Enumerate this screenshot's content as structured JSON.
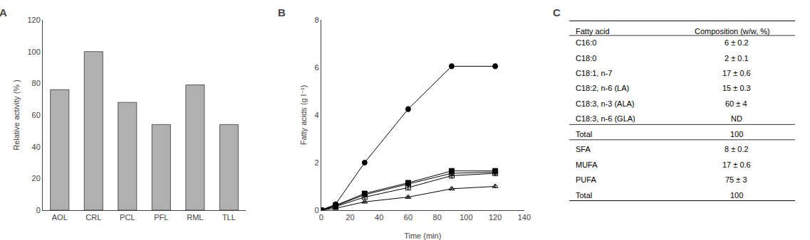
{
  "chart_data": [
    {
      "type": "bar",
      "title": "A",
      "categories": [
        "AOL",
        "CRL",
        "PCL",
        "PFL",
        "RML",
        "TLL"
      ],
      "values": [
        76,
        100,
        68,
        54,
        79,
        54
      ],
      "color": "#b0b0b0",
      "ylabel": "Relative activity (% )",
      "ylim": [
        0,
        120
      ],
      "yticks": [
        0,
        20,
        40,
        60,
        80,
        100,
        120
      ],
      "grid": false
    },
    {
      "type": "line",
      "title": "B",
      "x": [
        0,
        10,
        30,
        60,
        90,
        120
      ],
      "series": [
        {
          "color": "black",
          "marker": "circle",
          "values": [
            0.0,
            0.25,
            2.0,
            4.25,
            6.05,
            6.05
          ],
          "errors": [
            0.0,
            0.05,
            0.08,
            0.1,
            0.1,
            0.1
          ]
        },
        {
          "color": "black",
          "marker": "square",
          "values": [
            0.0,
            0.2,
            0.7,
            1.15,
            1.65,
            1.65
          ],
          "errors": [
            0.0,
            0.04,
            0.06,
            0.08,
            0.08,
            0.08
          ]
        },
        {
          "color": "black",
          "marker": "circle-open",
          "values": [
            0.0,
            0.18,
            0.65,
            1.1,
            1.55,
            1.6
          ],
          "errors": [
            0.0,
            0.04,
            0.05,
            0.07,
            0.07,
            0.07
          ]
        },
        {
          "color": "black",
          "marker": "square-open",
          "values": [
            0.0,
            0.15,
            0.55,
            0.95,
            1.45,
            1.55
          ],
          "errors": [
            0.0,
            0.03,
            0.05,
            0.06,
            0.06,
            0.06
          ]
        },
        {
          "color": "black",
          "marker": "triangle-up-open",
          "values": [
            0.0,
            0.08,
            0.35,
            0.55,
            0.9,
            1.0
          ],
          "errors": [
            0.0,
            0.02,
            0.03,
            0.04,
            0.05,
            0.05
          ]
        }
      ],
      "xlabel": "Time (min)",
      "ylabel": "Fatty acids (g l⁻¹)",
      "xlim": [
        0,
        140
      ],
      "xticks": [
        0,
        20,
        40,
        60,
        80,
        100,
        120,
        140
      ],
      "ylim": [
        0,
        8
      ],
      "yticks": [
        0,
        2,
        4,
        6,
        8
      ],
      "grid": false
    },
    {
      "type": "table",
      "title": "C",
      "columns": [
        "Fatty acid",
        "Composition (w/w, %)"
      ],
      "row_groups": [
        [
          [
            "C16:0",
            "6 ± 0.2"
          ],
          [
            "C18:0",
            "2 ± 0.1"
          ],
          [
            "C18:1, n-7",
            "17 ± 0.6"
          ],
          [
            "C18:2, n-6 (LA)",
            "15 ± 0.3"
          ],
          [
            "C18:3, n-3 (ALA)",
            "60 ± 4"
          ],
          [
            "C18:3, n-6 (GLA)",
            "ND"
          ]
        ],
        [
          [
            "Total",
            "100"
          ]
        ],
        [
          [
            "SFA",
            "8 ± 0.2"
          ],
          [
            "MUFA",
            "17 ± 0.6"
          ],
          [
            "PUFA",
            "75 ± 3"
          ],
          [
            "Total",
            "100"
          ]
        ]
      ]
    }
  ]
}
